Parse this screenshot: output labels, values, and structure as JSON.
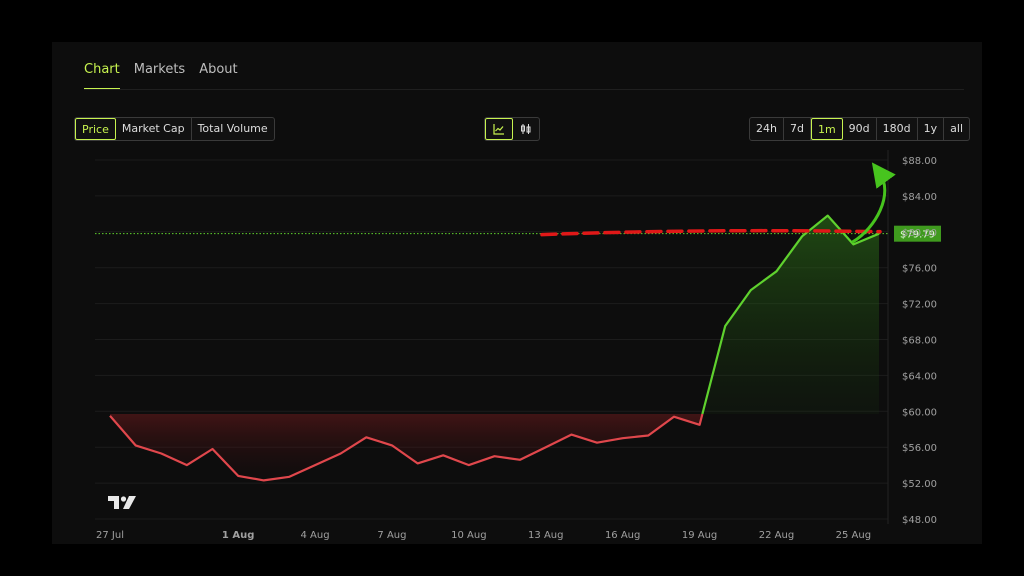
{
  "tabs": [
    "Chart",
    "Markets",
    "About"
  ],
  "metric_buttons": [
    "Price",
    "Market Cap",
    "Total Volume"
  ],
  "range_buttons": [
    "24h",
    "7d",
    "1m",
    "90d",
    "180d",
    "1y",
    "all"
  ],
  "colors": {
    "accent": "#c7f34f",
    "up": "#5fd12e",
    "down": "#e0474c",
    "annotation_dash": "#e01818",
    "annotation_arrow": "#47c41e"
  },
  "icons": {
    "line_chart": "line-chart-icon",
    "candles": "candlestick-icon",
    "watermark": "tradingview-logo"
  },
  "chart_data": {
    "type": "line",
    "x": [
      "27 Jul",
      "28 Jul",
      "29 Jul",
      "30 Jul",
      "31 Jul",
      "1 Aug",
      "2 Aug",
      "3 Aug",
      "4 Aug",
      "5 Aug",
      "6 Aug",
      "7 Aug",
      "8 Aug",
      "9 Aug",
      "10 Aug",
      "11 Aug",
      "12 Aug",
      "13 Aug",
      "14 Aug",
      "15 Aug",
      "16 Aug",
      "17 Aug",
      "18 Aug",
      "19 Aug",
      "20 Aug",
      "21 Aug",
      "22 Aug",
      "23 Aug",
      "24 Aug",
      "25 Aug",
      "26 Aug"
    ],
    "values": [
      59.5,
      56.2,
      55.3,
      54.0,
      55.8,
      52.8,
      52.3,
      52.7,
      54.0,
      55.3,
      57.1,
      56.2,
      54.2,
      55.1,
      54.0,
      55.0,
      54.6,
      56.0,
      57.4,
      56.5,
      57.0,
      57.3,
      59.4,
      58.5,
      69.5,
      73.5,
      75.6,
      79.5,
      81.8,
      78.6,
      79.79
    ],
    "baseline": 59.7,
    "current_price_label": "$79.79",
    "y_ticks": [
      "$48.00",
      "$52.00",
      "$56.00",
      "$60.00",
      "$64.00",
      "$68.00",
      "$72.00",
      "$76.00",
      "$80.00",
      "$84.00",
      "$88.00"
    ],
    "y_tick_values": [
      48,
      52,
      56,
      60,
      64,
      68,
      72,
      76,
      80,
      84,
      88
    ],
    "x_ticks": [
      "27 Jul",
      "1 Aug",
      "4 Aug",
      "7 Aug",
      "10 Aug",
      "13 Aug",
      "16 Aug",
      "19 Aug",
      "22 Aug",
      "25 Aug"
    ],
    "x_tick_index": [
      0,
      5,
      8,
      11,
      14,
      17,
      20,
      23,
      26,
      29
    ],
    "bold_x_tick": "1 Aug",
    "ylim": [
      48,
      88
    ],
    "grid": "horizontal"
  }
}
